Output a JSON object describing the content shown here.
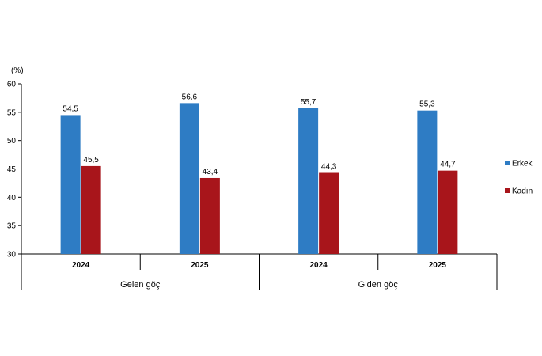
{
  "chart_data": {
    "type": "bar",
    "unit_label": "(%)",
    "ylim": [
      30,
      60
    ],
    "yticks": [
      30,
      35,
      40,
      45,
      50,
      55,
      60
    ],
    "grid": false,
    "legend_placement": "right",
    "groups": [
      {
        "label": "Gelen göç",
        "categories": [
          "2024",
          "2025"
        ]
      },
      {
        "label": "Giden göç",
        "categories": [
          "2024",
          "2025"
        ]
      }
    ],
    "categories": [
      "2024",
      "2025",
      "2024",
      "2025"
    ],
    "series": [
      {
        "name": "Erkek",
        "color": "#2e7cc4",
        "values": [
          54.5,
          56.6,
          55.7,
          55.3
        ],
        "labels": [
          "54,5",
          "56,6",
          "55,7",
          "55,3"
        ]
      },
      {
        "name": "Kadın",
        "color": "#a8151b",
        "values": [
          45.5,
          43.4,
          44.3,
          44.7
        ],
        "labels": [
          "45,5",
          "43,4",
          "44,3",
          "44,7"
        ]
      }
    ]
  }
}
